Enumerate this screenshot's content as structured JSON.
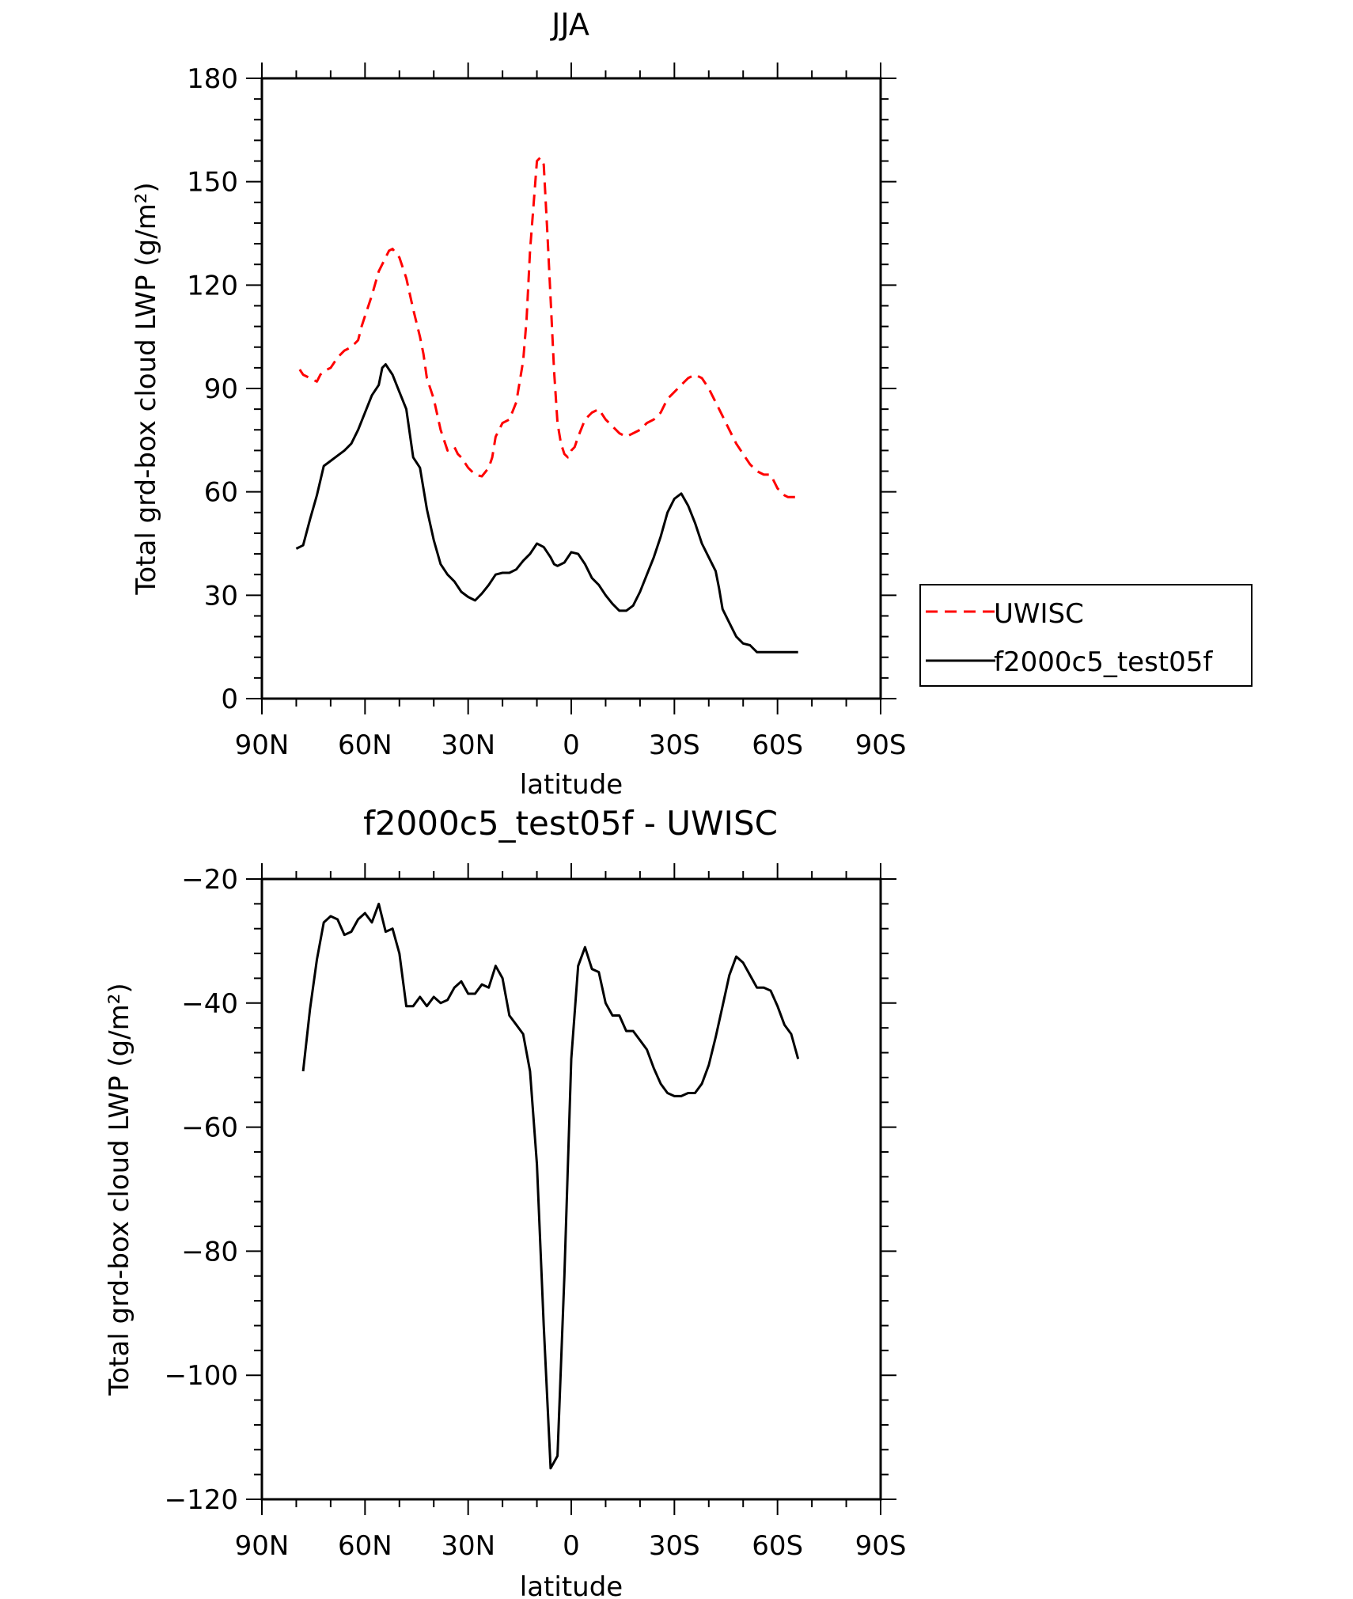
{
  "chart_data": [
    {
      "type": "line",
      "title": "JJA",
      "xlabel": "latitude",
      "ylabel": "Total grd-box cloud LWP (g/m²)",
      "xlim": [
        90,
        -90
      ],
      "ylim": [
        0,
        180
      ],
      "xticks": [
        90,
        60,
        30,
        0,
        -30,
        -60,
        -90
      ],
      "xtick_labels": [
        "90N",
        "60N",
        "30N",
        "0",
        "30S",
        "60S",
        "90S"
      ],
      "yticks": [
        0,
        30,
        60,
        90,
        120,
        150,
        180
      ],
      "ytick_labels": [
        "0",
        "30",
        "60",
        "90",
        "120",
        "150",
        "180"
      ],
      "legend": {
        "placement": "right"
      },
      "series": [
        {
          "name": "UWISC",
          "color": "#ff0000",
          "dash": "dashed",
          "x": [
            79,
            78,
            76,
            74,
            73,
            72,
            70,
            68,
            66,
            64,
            62,
            61,
            60,
            58,
            56,
            54,
            53,
            52,
            50,
            48,
            46,
            44,
            43,
            42,
            40,
            38,
            36,
            34,
            33,
            32,
            30,
            28,
            26,
            24,
            23,
            22,
            20,
            18,
            16,
            14,
            13,
            12,
            10,
            9,
            8,
            7,
            6,
            5,
            4,
            3,
            2,
            1,
            0,
            -1,
            -2,
            -4,
            -6,
            -8,
            -10,
            -12,
            -14,
            -16,
            -18,
            -20,
            -22,
            -24,
            -26,
            -28,
            -30,
            -32,
            -34,
            -36,
            -38,
            -40,
            -41,
            -42,
            -44,
            -46,
            -48,
            -50,
            -52,
            -54,
            -56,
            -58,
            -60,
            -62,
            -63,
            -64,
            -65,
            -66,
            -67
          ],
          "y": [
            95.5,
            94,
            93,
            92,
            94,
            95,
            96,
            99,
            101,
            102,
            104,
            108,
            111,
            117,
            124,
            128,
            130,
            130.5,
            128,
            122,
            113,
            105,
            100,
            93,
            87,
            78,
            72,
            73,
            71,
            70,
            67,
            65,
            64.5,
            67,
            70,
            76,
            80,
            81,
            86,
            98,
            110,
            130,
            156,
            157,
            155,
            136,
            116,
            95,
            80,
            74,
            71,
            70,
            72,
            73,
            76,
            81,
            83,
            84,
            81,
            79,
            77,
            76,
            77,
            78,
            80,
            81,
            83,
            87,
            89,
            91,
            93,
            94,
            93,
            90,
            88,
            86,
            82,
            78,
            74,
            71,
            68,
            66,
            65,
            65,
            61,
            59,
            58.5,
            58.5,
            58.5,
            58.5,
            58.5
          ]
        },
        {
          "name": "f2000c5_test05f",
          "color": "#000000",
          "dash": "solid",
          "x": [
            80,
            78,
            76,
            74,
            72,
            70,
            68,
            66,
            64,
            62,
            60,
            58,
            56,
            55,
            54,
            53,
            52,
            50,
            48,
            46,
            44,
            42,
            40,
            38,
            36,
            34,
            32,
            30,
            28,
            26,
            24,
            22,
            20,
            18,
            16,
            14,
            12,
            10,
            8,
            6,
            5,
            4,
            2,
            0,
            -2,
            -4,
            -6,
            -8,
            -10,
            -12,
            -14,
            -16,
            -18,
            -20,
            -22,
            -24,
            -26,
            -28,
            -30,
            -32,
            -34,
            -36,
            -38,
            -40,
            -42,
            -43,
            -44,
            -46,
            -48,
            -50,
            -52,
            -54,
            -56,
            -58,
            -60,
            -62,
            -64,
            -66
          ],
          "y": [
            43.5,
            44.5,
            52,
            59,
            67.5,
            69,
            70.5,
            72,
            74,
            78,
            83,
            88,
            91,
            96,
            97,
            95.5,
            94,
            89,
            84,
            70,
            67,
            55,
            46,
            39,
            36,
            34,
            31,
            29.5,
            28.5,
            30.5,
            33,
            36,
            36.5,
            36.5,
            37.5,
            40,
            42,
            45,
            44,
            41,
            39,
            38.5,
            39.5,
            42.5,
            42,
            39,
            35,
            33,
            30,
            27.5,
            25.5,
            25.5,
            27,
            31,
            36,
            41,
            47,
            54,
            58,
            59.5,
            56,
            51,
            45,
            41,
            37,
            32,
            26,
            22,
            18,
            16,
            15.5,
            13.5,
            13.5,
            13.5,
            13.5,
            13.5,
            13.5,
            13.5
          ]
        }
      ]
    },
    {
      "type": "line",
      "title": "f2000c5_test05f - UWISC",
      "xlabel": "latitude",
      "ylabel": "Total grd-box cloud LWP (g/m²)",
      "xlim": [
        90,
        -90
      ],
      "ylim": [
        -120,
        -20
      ],
      "xticks": [
        90,
        60,
        30,
        0,
        -30,
        -60,
        -90
      ],
      "xtick_labels": [
        "90N",
        "60N",
        "30N",
        "0",
        "30S",
        "60S",
        "90S"
      ],
      "yticks": [
        -120,
        -100,
        -80,
        -60,
        -40,
        -20
      ],
      "ytick_labels": [
        "−120",
        "−100",
        "−80",
        "−60",
        "−40",
        "−20"
      ],
      "series": [
        {
          "color": "#000000",
          "dash": "solid",
          "x": [
            78,
            76,
            74,
            72,
            70,
            68,
            66,
            64,
            62,
            60,
            58,
            56,
            54,
            52,
            50,
            48,
            46,
            44,
            42,
            40,
            38,
            36,
            34,
            32,
            30,
            28,
            26,
            24,
            22,
            20,
            18,
            16,
            14,
            12,
            10,
            8,
            6,
            4,
            2,
            0,
            -2,
            -4,
            -6,
            -8,
            -10,
            -12,
            -14,
            -16,
            -18,
            -20,
            -22,
            -24,
            -26,
            -28,
            -30,
            -32,
            -34,
            -36,
            -38,
            -40,
            -42,
            -44,
            -46,
            -48,
            -50,
            -52,
            -54,
            -56,
            -58,
            -60,
            -62,
            -64,
            -66
          ],
          "y": [
            -51,
            -41,
            -33,
            -27,
            -26,
            -26.5,
            -29,
            -28.5,
            -26.5,
            -25.5,
            -27,
            -24,
            -28.5,
            -28,
            -32,
            -40.5,
            -40.5,
            -39,
            -40.5,
            -39,
            -40,
            -39.5,
            -37.5,
            -36.5,
            -38.5,
            -38.5,
            -37,
            -37.5,
            -34,
            -36,
            -42,
            -43.5,
            -45,
            -51,
            -66,
            -92,
            -115,
            -113,
            -84,
            -49,
            -34,
            -31,
            -34.5,
            -35,
            -40,
            -42,
            -42,
            -44.5,
            -44.5,
            -46,
            -47.5,
            -50.5,
            -53,
            -54.5,
            -55,
            -55,
            -54.5,
            -54.5,
            -53,
            -50,
            -45.5,
            -40.5,
            -35.5,
            -32.5,
            -33.5,
            -35.5,
            -37.5,
            -37.5,
            -38,
            -40.5,
            -43.5,
            -45,
            -49
          ]
        }
      ]
    }
  ]
}
